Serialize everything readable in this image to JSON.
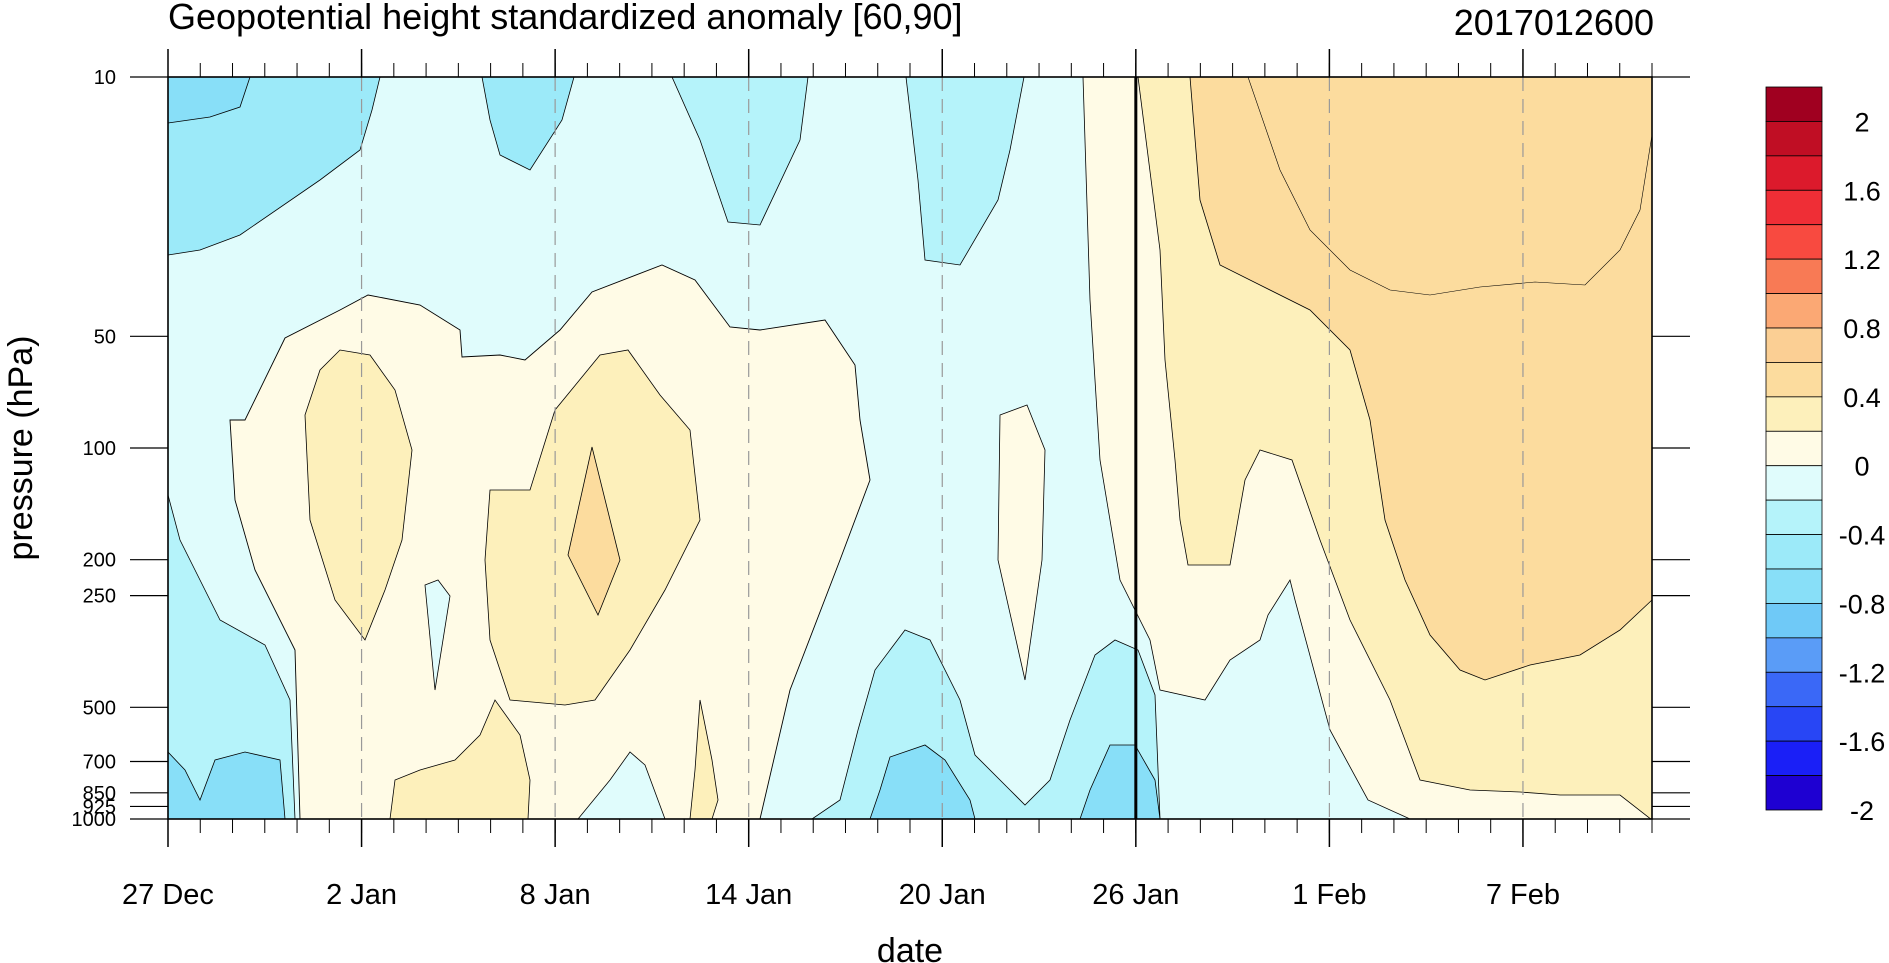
{
  "chart_data": {
    "type": "heatmap",
    "title": "Geopotential height standardized anomaly [60,90]",
    "date_tag": "2017012600",
    "xlabel": "date",
    "ylabel": "pressure (hPa)",
    "y_axis_scale": "log",
    "y_ticks": [
      10,
      50,
      100,
      200,
      250,
      500,
      700,
      850,
      925,
      1000
    ],
    "y_tick_labels": [
      "10",
      "50",
      "100",
      "200",
      "250",
      "500",
      "700",
      "850",
      "925",
      "1000"
    ],
    "x_range": [
      "2016-12-27",
      "2017-02-11"
    ],
    "x_ticks": [
      "2016-12-27",
      "2017-01-02",
      "2017-01-08",
      "2017-01-14",
      "2017-01-20",
      "2017-01-26",
      "2017-02-01",
      "2017-02-07"
    ],
    "x_tick_labels": [
      "27 Dec",
      "2 Jan",
      "8 Jan",
      "14 Jan",
      "20 Jan",
      "26 Jan",
      "1 Feb",
      "7 Feb"
    ],
    "current_date_marker": "2017-01-26",
    "colorbar": {
      "levels": [
        -2,
        -1.8,
        -1.6,
        -1.4,
        -1.2,
        -1.0,
        -0.8,
        -0.6,
        -0.4,
        -0.2,
        0,
        0.2,
        0.4,
        0.6,
        0.8,
        1.0,
        1.2,
        1.4,
        1.6,
        1.8,
        2.0
      ],
      "labels": [
        "2",
        "1.6",
        "1.2",
        "0.8",
        "0.4",
        "0",
        "-0.4",
        "-0.8",
        "-1.2",
        "-1.6",
        "-2"
      ],
      "colors": [
        "#1e00d2",
        "#1a1ff7",
        "#2846f5",
        "#3a68f7",
        "#5a9cf7",
        "#6fc9f7",
        "#88dff8",
        "#9ceaf9",
        "#b5f3fa",
        "#e0fcfc",
        "#fffbe6",
        "#fdf0bb",
        "#fcdc9e",
        "#fbcf94",
        "#fba874",
        "#f87a55",
        "#f84a40",
        "#ef2e36",
        "#dc1a2c",
        "#c00e24",
        "#a00020"
      ]
    },
    "anomaly_regions": [
      {
        "dates": [
          "2016-12-27",
          "2017-01-01"
        ],
        "levels_hPa": [
          10,
          40
        ],
        "value_range": [
          -0.6,
          -0.4
        ]
      },
      {
        "dates": [
          "2017-01-06",
          "2017-01-08"
        ],
        "levels_hPa": [
          10,
          20
        ],
        "value_range": [
          -0.6,
          -0.4
        ]
      },
      {
        "dates": [
          "2017-01-02",
          "2017-01-03"
        ],
        "levels_hPa": [
          60,
          300
        ],
        "value_range": [
          0.2,
          0.4
        ]
      },
      {
        "dates": [
          "2017-01-07",
          "2017-01-09"
        ],
        "levels_hPa": [
          120,
          270
        ],
        "value_range": [
          0.4,
          0.6
        ]
      },
      {
        "dates": [
          "2017-01-17",
          "2017-01-20"
        ],
        "levels_hPa": [
          850,
          1000
        ],
        "value_range": [
          -0.6,
          -0.4
        ]
      },
      {
        "dates": [
          "2017-01-26",
          "2017-02-11"
        ],
        "levels_hPa": [
          10,
          450
        ],
        "value_range": [
          0.4,
          0.6
        ]
      },
      {
        "dates": [
          "2017-02-01",
          "2017-02-03"
        ],
        "levels_hPa": [
          10,
          14
        ],
        "value_range": [
          0.6,
          0.8
        ]
      }
    ]
  }
}
